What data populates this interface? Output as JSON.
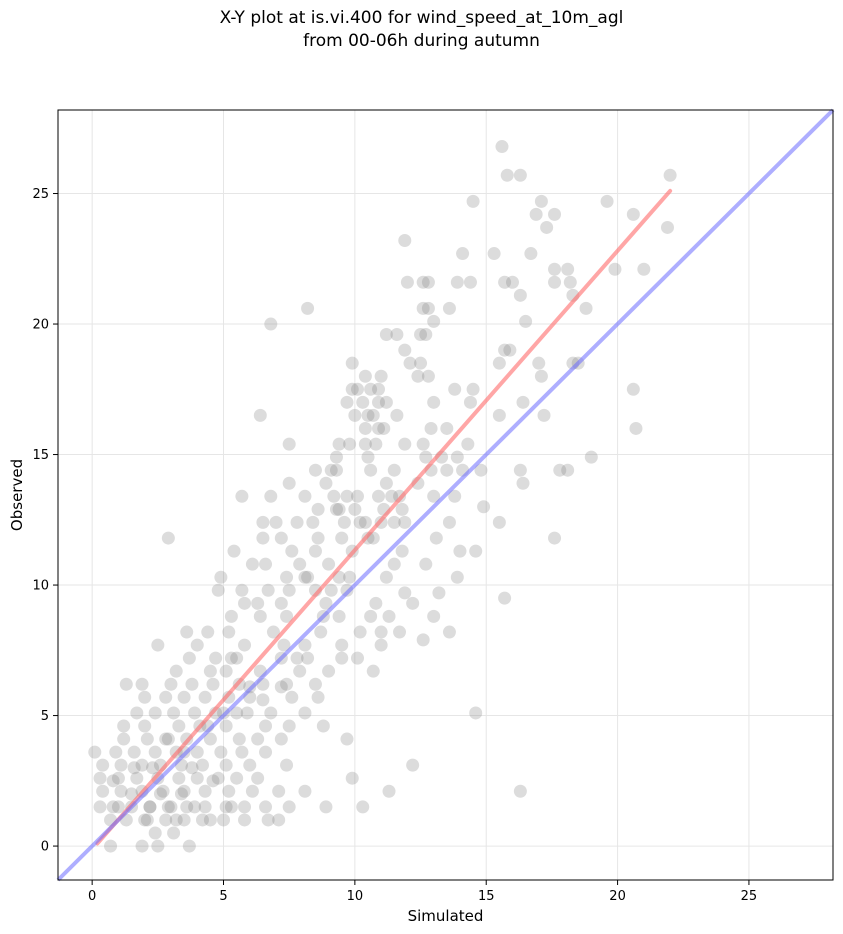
{
  "chart_data": {
    "type": "scatter",
    "title_line1": "X-Y plot at is.vi.400 for wind_speed_at_10m_agl",
    "title_line2": "from 00-06h during autumn",
    "xlabel": "Simulated",
    "ylabel": "Observed",
    "xlim": [
      -1.3,
      28.2
    ],
    "ylim": [
      -1.3,
      28.2
    ],
    "xticks": [
      0,
      5,
      10,
      15,
      20,
      25
    ],
    "yticks": [
      0,
      5,
      10,
      15,
      20,
      25
    ],
    "grid": true,
    "colors": {
      "points": "#808080",
      "fit_line": "#ff6b6b",
      "one_to_one": "#6b6bff"
    },
    "fit_line": {
      "x": [
        0.2,
        22.0
      ],
      "y": [
        0.1,
        25.1
      ]
    },
    "one_to_one_line": {
      "x": [
        -1.3,
        28.2
      ],
      "y": [
        -1.3,
        28.2
      ]
    },
    "points": [
      [
        15.6,
        26.8
      ],
      [
        15.8,
        25.7
      ],
      [
        16.3,
        25.7
      ],
      [
        22.0,
        25.7
      ],
      [
        14.5,
        24.7
      ],
      [
        17.1,
        24.7
      ],
      [
        19.6,
        24.7
      ],
      [
        16.9,
        24.2
      ],
      [
        17.6,
        24.2
      ],
      [
        20.6,
        24.2
      ],
      [
        17.3,
        23.7
      ],
      [
        21.9,
        23.7
      ],
      [
        11.9,
        23.2
      ],
      [
        14.1,
        22.7
      ],
      [
        15.3,
        22.7
      ],
      [
        16.7,
        22.7
      ],
      [
        17.6,
        22.1
      ],
      [
        18.1,
        22.1
      ],
      [
        19.9,
        22.1
      ],
      [
        21.0,
        22.1
      ],
      [
        12.0,
        21.6
      ],
      [
        12.6,
        21.6
      ],
      [
        12.8,
        21.6
      ],
      [
        13.9,
        21.6
      ],
      [
        14.4,
        21.6
      ],
      [
        15.7,
        21.6
      ],
      [
        16.0,
        21.6
      ],
      [
        17.6,
        21.6
      ],
      [
        18.2,
        21.6
      ],
      [
        16.3,
        21.1
      ],
      [
        18.3,
        21.1
      ],
      [
        8.2,
        20.6
      ],
      [
        12.6,
        20.6
      ],
      [
        12.8,
        20.6
      ],
      [
        13.6,
        20.6
      ],
      [
        18.8,
        20.6
      ],
      [
        6.8,
        20.0
      ],
      [
        13.0,
        20.1
      ],
      [
        16.5,
        20.1
      ],
      [
        11.2,
        19.6
      ],
      [
        11.6,
        19.6
      ],
      [
        12.5,
        19.6
      ],
      [
        12.7,
        19.6
      ],
      [
        11.9,
        19.0
      ],
      [
        15.7,
        19.0
      ],
      [
        15.9,
        19.0
      ],
      [
        12.1,
        18.5
      ],
      [
        12.5,
        18.5
      ],
      [
        9.9,
        18.5
      ],
      [
        15.5,
        18.5
      ],
      [
        17.0,
        18.5
      ],
      [
        18.3,
        18.5
      ],
      [
        18.5,
        18.5
      ],
      [
        10.4,
        18.0
      ],
      [
        11.0,
        18.0
      ],
      [
        12.4,
        18.0
      ],
      [
        12.8,
        18.0
      ],
      [
        17.1,
        18.0
      ],
      [
        9.9,
        17.5
      ],
      [
        10.1,
        17.5
      ],
      [
        10.6,
        17.5
      ],
      [
        10.9,
        17.5
      ],
      [
        13.8,
        17.5
      ],
      [
        14.5,
        17.5
      ],
      [
        20.6,
        17.5
      ],
      [
        9.7,
        17.0
      ],
      [
        10.3,
        17.0
      ],
      [
        10.9,
        17.0
      ],
      [
        11.2,
        17.0
      ],
      [
        13.0,
        17.0
      ],
      [
        14.4,
        17.0
      ],
      [
        16.4,
        17.0
      ],
      [
        6.4,
        16.5
      ],
      [
        10.0,
        16.5
      ],
      [
        10.5,
        16.5
      ],
      [
        10.7,
        16.5
      ],
      [
        11.6,
        16.5
      ],
      [
        15.5,
        16.5
      ],
      [
        17.2,
        16.5
      ],
      [
        10.4,
        16.0
      ],
      [
        10.9,
        16.0
      ],
      [
        11.1,
        16.0
      ],
      [
        12.9,
        16.0
      ],
      [
        13.5,
        16.0
      ],
      [
        20.7,
        16.0
      ],
      [
        7.5,
        15.4
      ],
      [
        9.4,
        15.4
      ],
      [
        9.8,
        15.4
      ],
      [
        10.4,
        15.4
      ],
      [
        10.8,
        15.4
      ],
      [
        11.9,
        15.4
      ],
      [
        12.6,
        15.4
      ],
      [
        14.3,
        15.4
      ],
      [
        9.3,
        14.9
      ],
      [
        10.5,
        14.9
      ],
      [
        12.7,
        14.9
      ],
      [
        13.3,
        14.9
      ],
      [
        13.9,
        14.9
      ],
      [
        19.0,
        14.9
      ],
      [
        8.5,
        14.4
      ],
      [
        9.1,
        14.4
      ],
      [
        9.3,
        14.4
      ],
      [
        10.6,
        14.4
      ],
      [
        11.5,
        14.4
      ],
      [
        13.5,
        14.4
      ],
      [
        14.1,
        14.4
      ],
      [
        14.8,
        14.4
      ],
      [
        16.3,
        14.4
      ],
      [
        17.8,
        14.4
      ],
      [
        18.1,
        14.4
      ],
      [
        5.7,
        13.4
      ],
      [
        8.1,
        13.4
      ],
      [
        9.2,
        13.4
      ],
      [
        9.7,
        13.4
      ],
      [
        10.1,
        13.4
      ],
      [
        10.9,
        13.4
      ],
      [
        11.4,
        13.4
      ],
      [
        13.0,
        13.4
      ],
      [
        13.8,
        13.4
      ],
      [
        7.5,
        13.9
      ],
      [
        8.9,
        13.9
      ],
      [
        11.2,
        13.9
      ],
      [
        12.4,
        13.9
      ],
      [
        16.4,
        13.9
      ],
      [
        6.8,
        13.4
      ],
      [
        8.6,
        12.9
      ],
      [
        9.3,
        12.9
      ],
      [
        10.0,
        12.9
      ],
      [
        11.1,
        12.9
      ],
      [
        11.8,
        12.9
      ],
      [
        14.9,
        13.0
      ],
      [
        6.5,
        12.4
      ],
      [
        7.0,
        12.4
      ],
      [
        7.8,
        12.4
      ],
      [
        8.4,
        12.4
      ],
      [
        9.6,
        12.4
      ],
      [
        10.4,
        12.4
      ],
      [
        11.5,
        12.4
      ],
      [
        11.9,
        12.4
      ],
      [
        13.6,
        12.4
      ],
      [
        15.5,
        12.4
      ],
      [
        2.9,
        11.8
      ],
      [
        6.5,
        11.8
      ],
      [
        7.2,
        11.8
      ],
      [
        8.6,
        11.8
      ],
      [
        9.5,
        11.8
      ],
      [
        10.7,
        11.8
      ],
      [
        13.1,
        11.8
      ],
      [
        17.6,
        11.8
      ],
      [
        5.4,
        11.3
      ],
      [
        7.6,
        11.3
      ],
      [
        8.5,
        11.3
      ],
      [
        9.9,
        11.3
      ],
      [
        11.8,
        11.3
      ],
      [
        14.0,
        11.3
      ],
      [
        14.6,
        11.3
      ],
      [
        6.1,
        10.8
      ],
      [
        6.6,
        10.8
      ],
      [
        7.9,
        10.8
      ],
      [
        9.0,
        10.8
      ],
      [
        11.5,
        10.8
      ],
      [
        12.7,
        10.8
      ],
      [
        4.9,
        10.3
      ],
      [
        7.4,
        10.3
      ],
      [
        8.1,
        10.3
      ],
      [
        9.4,
        10.3
      ],
      [
        11.2,
        10.3
      ],
      [
        13.9,
        10.3
      ],
      [
        4.8,
        9.8
      ],
      [
        5.7,
        9.8
      ],
      [
        6.7,
        9.8
      ],
      [
        7.5,
        9.8
      ],
      [
        8.5,
        9.8
      ],
      [
        9.7,
        9.8
      ],
      [
        11.9,
        9.7
      ],
      [
        13.2,
        9.7
      ],
      [
        5.8,
        9.3
      ],
      [
        6.3,
        9.3
      ],
      [
        7.2,
        9.3
      ],
      [
        8.9,
        9.3
      ],
      [
        10.8,
        9.3
      ],
      [
        12.2,
        9.3
      ],
      [
        15.7,
        9.5
      ],
      [
        5.3,
        8.8
      ],
      [
        6.4,
        8.8
      ],
      [
        7.4,
        8.8
      ],
      [
        9.4,
        8.8
      ],
      [
        10.6,
        8.8
      ],
      [
        11.3,
        8.8
      ],
      [
        13.0,
        8.8
      ],
      [
        3.6,
        8.2
      ],
      [
        4.4,
        8.2
      ],
      [
        5.2,
        8.2
      ],
      [
        6.9,
        8.2
      ],
      [
        8.7,
        8.2
      ],
      [
        10.2,
        8.2
      ],
      [
        11.0,
        8.2
      ],
      [
        11.7,
        8.2
      ],
      [
        13.6,
        8.2
      ],
      [
        12.6,
        7.9
      ],
      [
        2.5,
        7.7
      ],
      [
        4.0,
        7.7
      ],
      [
        5.8,
        7.7
      ],
      [
        7.3,
        7.7
      ],
      [
        8.1,
        7.7
      ],
      [
        9.5,
        7.7
      ],
      [
        11.0,
        7.7
      ],
      [
        3.7,
        7.2
      ],
      [
        4.7,
        7.2
      ],
      [
        5.5,
        7.2
      ],
      [
        7.2,
        7.2
      ],
      [
        8.2,
        7.2
      ],
      [
        9.5,
        7.2
      ],
      [
        10.1,
        7.2
      ],
      [
        3.2,
        6.7
      ],
      [
        4.5,
        6.7
      ],
      [
        5.1,
        6.7
      ],
      [
        6.4,
        6.7
      ],
      [
        7.9,
        6.7
      ],
      [
        9.0,
        6.7
      ],
      [
        10.7,
        6.7
      ],
      [
        1.3,
        6.2
      ],
      [
        1.9,
        6.2
      ],
      [
        3.0,
        6.2
      ],
      [
        3.8,
        6.2
      ],
      [
        4.6,
        6.2
      ],
      [
        5.6,
        6.2
      ],
      [
        6.5,
        6.2
      ],
      [
        7.4,
        6.2
      ],
      [
        8.5,
        6.2
      ],
      [
        2.0,
        5.7
      ],
      [
        2.8,
        5.7
      ],
      [
        3.5,
        5.7
      ],
      [
        4.3,
        5.7
      ],
      [
        5.2,
        5.7
      ],
      [
        6.0,
        5.7
      ],
      [
        7.6,
        5.7
      ],
      [
        8.6,
        5.7
      ],
      [
        1.7,
        5.1
      ],
      [
        2.4,
        5.1
      ],
      [
        3.1,
        5.1
      ],
      [
        3.9,
        5.1
      ],
      [
        4.7,
        5.1
      ],
      [
        5.5,
        5.1
      ],
      [
        6.8,
        5.1
      ],
      [
        8.1,
        5.1
      ],
      [
        14.6,
        5.1
      ],
      [
        1.2,
        4.6
      ],
      [
        2.0,
        4.6
      ],
      [
        3.3,
        4.6
      ],
      [
        4.4,
        4.6
      ],
      [
        5.1,
        4.6
      ],
      [
        6.6,
        4.6
      ],
      [
        7.5,
        4.6
      ],
      [
        8.8,
        4.6
      ],
      [
        1.2,
        4.1
      ],
      [
        2.1,
        4.1
      ],
      [
        2.8,
        4.1
      ],
      [
        3.6,
        4.1
      ],
      [
        4.5,
        4.1
      ],
      [
        5.6,
        4.1
      ],
      [
        6.3,
        4.1
      ],
      [
        7.2,
        4.1
      ],
      [
        9.7,
        4.1
      ],
      [
        0.1,
        3.6
      ],
      [
        0.9,
        3.6
      ],
      [
        1.6,
        3.6
      ],
      [
        2.4,
        3.6
      ],
      [
        3.2,
        3.6
      ],
      [
        4.0,
        3.6
      ],
      [
        4.9,
        3.6
      ],
      [
        5.7,
        3.6
      ],
      [
        6.6,
        3.6
      ],
      [
        0.4,
        3.1
      ],
      [
        1.1,
        3.1
      ],
      [
        1.9,
        3.1
      ],
      [
        2.6,
        3.1
      ],
      [
        3.4,
        3.1
      ],
      [
        4.2,
        3.1
      ],
      [
        5.1,
        3.1
      ],
      [
        6.0,
        3.1
      ],
      [
        7.4,
        3.1
      ],
      [
        12.2,
        3.1
      ],
      [
        0.3,
        2.6
      ],
      [
        1.0,
        2.6
      ],
      [
        1.7,
        2.6
      ],
      [
        2.5,
        2.6
      ],
      [
        3.3,
        2.6
      ],
      [
        4.0,
        2.6
      ],
      [
        4.8,
        2.6
      ],
      [
        5.5,
        2.6
      ],
      [
        6.3,
        2.6
      ],
      [
        9.9,
        2.6
      ],
      [
        0.4,
        2.1
      ],
      [
        1.1,
        2.1
      ],
      [
        1.9,
        2.1
      ],
      [
        2.7,
        2.1
      ],
      [
        3.5,
        2.1
      ],
      [
        4.3,
        2.1
      ],
      [
        5.2,
        2.1
      ],
      [
        6.1,
        2.1
      ],
      [
        7.1,
        2.1
      ],
      [
        8.1,
        2.1
      ],
      [
        11.3,
        2.1
      ],
      [
        16.3,
        2.1
      ],
      [
        0.3,
        1.5
      ],
      [
        0.8,
        1.5
      ],
      [
        1.5,
        1.5
      ],
      [
        2.2,
        1.5
      ],
      [
        2.9,
        1.5
      ],
      [
        3.6,
        1.5
      ],
      [
        4.3,
        1.5
      ],
      [
        5.1,
        1.5
      ],
      [
        5.8,
        1.5
      ],
      [
        6.6,
        1.5
      ],
      [
        7.5,
        1.5
      ],
      [
        8.9,
        1.5
      ],
      [
        10.3,
        1.5
      ],
      [
        0.7,
        1.0
      ],
      [
        1.3,
        1.0
      ],
      [
        2.1,
        1.0
      ],
      [
        2.8,
        1.0
      ],
      [
        3.5,
        1.0
      ],
      [
        4.2,
        1.0
      ],
      [
        5.0,
        1.0
      ],
      [
        5.8,
        1.0
      ],
      [
        6.7,
        1.0
      ],
      [
        7.1,
        1.0
      ],
      [
        2.4,
        0.5
      ],
      [
        3.1,
        0.5
      ],
      [
        0.7,
        0.0
      ],
      [
        1.9,
        0.0
      ],
      [
        2.5,
        0.0
      ],
      [
        3.7,
        0.0
      ],
      [
        2.2,
        1.5
      ],
      [
        2.6,
        2.0
      ],
      [
        3.0,
        1.5
      ],
      [
        3.4,
        2.0
      ],
      [
        1.5,
        2.0
      ],
      [
        1.0,
        1.5
      ],
      [
        3.9,
        1.5
      ],
      [
        4.5,
        1.0
      ],
      [
        2.0,
        1.0
      ],
      [
        3.2,
        1.0
      ],
      [
        0.8,
        2.5
      ],
      [
        1.6,
        3.0
      ],
      [
        2.3,
        3.0
      ],
      [
        3.8,
        3.0
      ],
      [
        4.6,
        2.5
      ],
      [
        5.3,
        1.5
      ],
      [
        4.1,
        4.6
      ],
      [
        3.5,
        3.6
      ],
      [
        2.9,
        4.1
      ],
      [
        5.0,
        5.1
      ],
      [
        5.9,
        5.1
      ],
      [
        6.5,
        5.6
      ],
      [
        7.2,
        6.1
      ],
      [
        7.8,
        7.2
      ],
      [
        6.0,
        6.1
      ],
      [
        5.3,
        7.2
      ],
      [
        9.1,
        9.8
      ],
      [
        9.8,
        10.3
      ],
      [
        10.5,
        11.8
      ],
      [
        11.0,
        12.4
      ],
      [
        11.7,
        13.4
      ],
      [
        8.8,
        8.8
      ],
      [
        8.2,
        10.3
      ],
      [
        9.4,
        12.9
      ],
      [
        10.2,
        12.4
      ],
      [
        12.9,
        14.4
      ]
    ]
  }
}
